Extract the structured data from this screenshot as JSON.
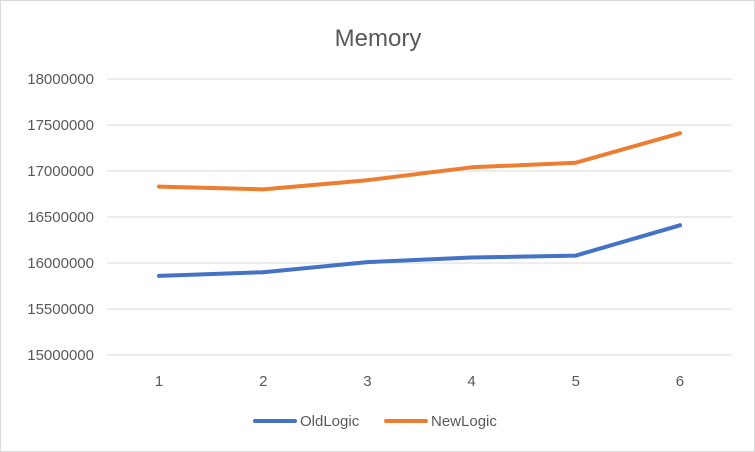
{
  "chart_data": {
    "type": "line",
    "title": "Memory",
    "x": [
      1,
      2,
      3,
      4,
      5,
      6
    ],
    "x_tick_labels": [
      "1",
      "2",
      "3",
      "4",
      "5",
      "6"
    ],
    "y_tick_labels": [
      "15000000",
      "15500000",
      "16000000",
      "16500000",
      "17000000",
      "17500000",
      "18000000"
    ],
    "ylim": [
      15000000,
      18000000
    ],
    "y_ticks": [
      15000000,
      15500000,
      16000000,
      16500000,
      17000000,
      17500000,
      18000000
    ],
    "grid": true,
    "legend_position": "bottom",
    "series": [
      {
        "name": "OldLogic",
        "color": "#4472c4",
        "values": [
          15860000,
          15900000,
          16010000,
          16060000,
          16080000,
          16410000
        ]
      },
      {
        "name": "NewLogic",
        "color": "#ed7d31",
        "values": [
          16830000,
          16800000,
          16900000,
          17040000,
          17090000,
          17410000
        ]
      }
    ]
  }
}
